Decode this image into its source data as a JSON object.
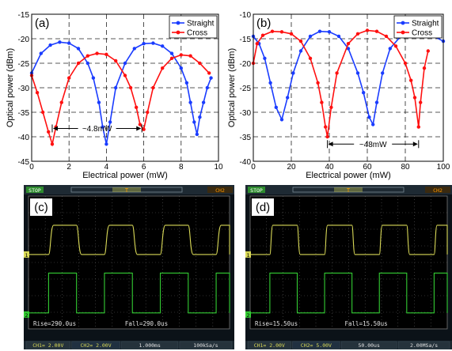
{
  "chart_data": [
    {
      "type": "line",
      "panel_label": "(a)",
      "xlabel": "Electrical power (mW)",
      "ylabel": "Optical power (dBm)",
      "xlim": [
        0,
        10
      ],
      "ylim": [
        -45,
        -15
      ],
      "xticks": [
        "0",
        "2",
        "4",
        "6",
        "8",
        "10"
      ],
      "yticks": [
        "-45",
        "-40",
        "-35",
        "-30",
        "-25",
        "-20",
        "-15"
      ],
      "grid": true,
      "legend_position": "top-right",
      "annotation": "~4.8mW",
      "annotation_span": [
        1.1,
        5.9
      ],
      "annotation_y": -38.3,
      "series": [
        {
          "name": "Straight",
          "color": "#1a3cff",
          "x": [
            0,
            0.5,
            1.0,
            1.5,
            2.0,
            2.5,
            3.0,
            3.3,
            3.6,
            3.8,
            4.0,
            4.2,
            4.5,
            5.0,
            5.5,
            6.0,
            6.5,
            7.0,
            7.5,
            8.0,
            8.3,
            8.5,
            8.7,
            8.85,
            9.0,
            9.2,
            9.4,
            9.6
          ],
          "y": [
            -27,
            -23,
            -21.3,
            -20.7,
            -20.9,
            -22,
            -25,
            -28,
            -33,
            -38,
            -41.5,
            -37,
            -30,
            -25,
            -22,
            -21,
            -20.9,
            -21.5,
            -23,
            -26,
            -29,
            -33,
            -37,
            -39.5,
            -36,
            -33,
            -30,
            -28
          ]
        },
        {
          "name": "Cross",
          "color": "#ff1010",
          "x": [
            0,
            0.3,
            0.6,
            0.9,
            1.1,
            1.3,
            1.6,
            2.0,
            2.5,
            3.0,
            3.5,
            4.0,
            4.5,
            5.0,
            5.3,
            5.6,
            5.8,
            6.0,
            6.2,
            6.5,
            7.0,
            7.5,
            8.0,
            8.5,
            9.0,
            9.5
          ],
          "y": [
            -27.5,
            -31,
            -35,
            -39,
            -41.5,
            -38,
            -33,
            -28,
            -25,
            -23.5,
            -23,
            -23.2,
            -24.5,
            -27.5,
            -30,
            -34,
            -37.5,
            -38.5,
            -35,
            -30,
            -26,
            -24,
            -23.3,
            -23.5,
            -25,
            -27
          ]
        }
      ]
    },
    {
      "type": "line",
      "panel_label": "(b)",
      "xlabel": "Electrical power (mW)",
      "ylabel": "Optical power (dBm)",
      "xlim": [
        0,
        100
      ],
      "ylim": [
        -40,
        -10
      ],
      "xticks": [
        "0",
        "20",
        "40",
        "60",
        "80",
        "100"
      ],
      "yticks": [
        "-40",
        "-35",
        "-30",
        "-25",
        "-20",
        "-15",
        "-10"
      ],
      "grid": true,
      "legend_position": "top-right",
      "annotation": "~48mW",
      "annotation_span": [
        39,
        87
      ],
      "annotation_y": -36.5,
      "series": [
        {
          "name": "Straight",
          "color": "#1a3cff",
          "x": [
            0,
            3,
            6,
            9,
            12,
            15,
            18,
            21,
            25,
            30,
            35,
            40,
            45,
            50,
            55,
            58,
            61,
            63,
            65,
            68,
            72,
            78,
            84,
            90,
            95,
            100
          ],
          "y": [
            -14.5,
            -16,
            -19,
            -24,
            -29,
            -31.5,
            -27,
            -22,
            -17.5,
            -14.5,
            -13.5,
            -13.6,
            -14.5,
            -17,
            -22,
            -26,
            -31,
            -32.5,
            -28,
            -22,
            -17,
            -14.3,
            -13.5,
            -13.8,
            -14.5,
            -15.5
          ]
        },
        {
          "name": "Cross",
          "color": "#ff1010",
          "x": [
            0,
            2,
            5,
            10,
            15,
            20,
            25,
            30,
            34,
            36,
            38,
            39,
            41,
            44,
            50,
            55,
            60,
            65,
            70,
            75,
            80,
            83,
            85,
            87,
            88,
            90,
            92
          ],
          "y": [
            -20,
            -16,
            -14.3,
            -13.5,
            -13.6,
            -14,
            -15.5,
            -19,
            -24,
            -28,
            -33,
            -35,
            -29,
            -22,
            -16,
            -14,
            -13.3,
            -13.5,
            -14.5,
            -16.5,
            -20,
            -23.5,
            -27,
            -33,
            -28,
            -21,
            -17.5
          ]
        }
      ]
    }
  ],
  "oscilloscopes": [
    {
      "panel_label": "(c)",
      "status": "STOP",
      "trigger_marker": "T",
      "channel_tag": "CH2",
      "ch1_marker": "1",
      "ch2_marker": "2",
      "measure_rise": "Rise=290.0us",
      "measure_fall": "Fall=290.0us",
      "bottom_bar": [
        "CH1= 2.00V",
        "CH2= 2.00V",
        "1.000ms",
        "100kSa/s"
      ],
      "trace_yellow_color": "#d9d957",
      "trace_green_color": "#33cc33"
    },
    {
      "panel_label": "(d)",
      "status": "STOP",
      "trigger_marker": "T",
      "channel_tag": "CH2",
      "ch1_marker": "1",
      "ch2_marker": "2",
      "measure_rise": "Rise=15.50us",
      "measure_fall": "Fall=15.50us",
      "bottom_bar": [
        "CH1= 2.00V",
        "CH2= 5.00V",
        "50.00us",
        "2.00MSa/s"
      ],
      "trace_yellow_color": "#d9d957",
      "trace_green_color": "#33cc33"
    }
  ]
}
